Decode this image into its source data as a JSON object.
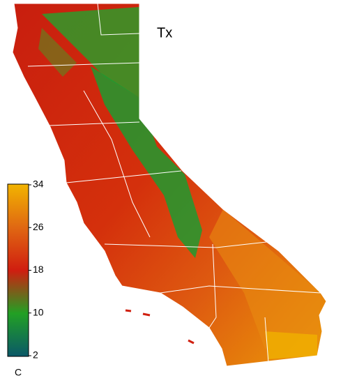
{
  "title": "Tx",
  "colorbar": {
    "range": [
      2,
      34
    ],
    "ticks": [
      2,
      10,
      18,
      26,
      34
    ],
    "unit": "C"
  }
}
